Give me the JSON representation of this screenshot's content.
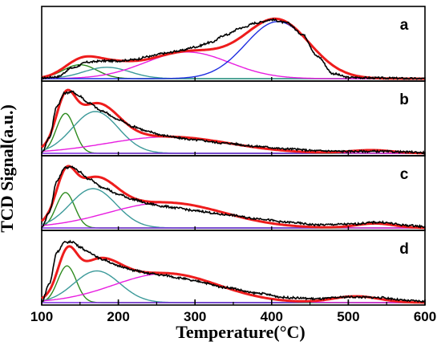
{
  "chart_data": {
    "type": "line",
    "xlabel": "Temperature(°C)",
    "ylabel": "TCD Signal(a.u.)",
    "xlim": [
      100,
      600
    ],
    "x_ticks": [
      "100",
      "200",
      "300",
      "400",
      "500",
      "600"
    ],
    "panels": [
      {
        "label": "a",
        "experimental": {
          "x": [
            100,
            120,
            140,
            160,
            180,
            200,
            220,
            240,
            260,
            280,
            300,
            320,
            340,
            360,
            380,
            400,
            420,
            440,
            460,
            480,
            500,
            540,
            600
          ],
          "y": [
            0.01,
            0.03,
            0.17,
            0.26,
            0.28,
            0.28,
            0.3,
            0.35,
            0.4,
            0.44,
            0.5,
            0.57,
            0.69,
            0.8,
            0.88,
            0.93,
            0.88,
            0.7,
            0.35,
            0.08,
            0.02,
            0.01,
            0.0
          ]
        },
        "peaks": [
          {
            "color": "#2e8b1f",
            "center": 150,
            "height": 0.22,
            "width": 22
          },
          {
            "color": "#3c9a9a",
            "center": 185,
            "height": 0.18,
            "width": 30
          },
          {
            "color": "#e81ee0",
            "center": 290,
            "height": 0.42,
            "width": 55
          },
          {
            "color": "#1f2ee0",
            "center": 408,
            "height": 0.9,
            "width": 42
          }
        ]
      },
      {
        "label": "b",
        "experimental": {
          "x": [
            100,
            110,
            120,
            130,
            140,
            150,
            160,
            180,
            200,
            220,
            240,
            260,
            280,
            300,
            340,
            380,
            420,
            460,
            500,
            540,
            580,
            600
          ],
          "y": [
            0.01,
            0.25,
            0.75,
            0.95,
            0.97,
            0.9,
            0.8,
            0.66,
            0.53,
            0.42,
            0.34,
            0.28,
            0.24,
            0.21,
            0.16,
            0.11,
            0.07,
            0.04,
            0.03,
            0.03,
            0.02,
            0.01
          ]
        },
        "peaks": [
          {
            "color": "#2e8b1f",
            "center": 131,
            "height": 0.63,
            "width": 12
          },
          {
            "color": "#3c9a9a",
            "center": 170,
            "height": 0.66,
            "width": 30
          },
          {
            "color": "#e81ee0",
            "center": 265,
            "height": 0.26,
            "width": 80
          },
          {
            "color": "#7a2ae0",
            "center": 530,
            "height": 0.05,
            "width": 28
          }
        ]
      },
      {
        "label": "c",
        "experimental": {
          "x": [
            100,
            110,
            120,
            130,
            140,
            150,
            160,
            180,
            200,
            220,
            240,
            260,
            280,
            300,
            340,
            380,
            420,
            460,
            500,
            540,
            580,
            600
          ],
          "y": [
            0.01,
            0.25,
            0.75,
            0.95,
            0.96,
            0.88,
            0.78,
            0.64,
            0.53,
            0.45,
            0.38,
            0.34,
            0.31,
            0.27,
            0.21,
            0.15,
            0.09,
            0.05,
            0.06,
            0.09,
            0.04,
            0.02
          ]
        },
        "peaks": [
          {
            "color": "#2e8b1f",
            "center": 131,
            "height": 0.56,
            "width": 12
          },
          {
            "color": "#3c9a9a",
            "center": 167,
            "height": 0.62,
            "width": 30
          },
          {
            "color": "#e81ee0",
            "center": 262,
            "height": 0.4,
            "width": 75
          },
          {
            "color": "#7a2ae0",
            "center": 535,
            "height": 0.07,
            "width": 25
          }
        ]
      },
      {
        "label": "d",
        "experimental": {
          "x": [
            100,
            110,
            120,
            130,
            140,
            150,
            160,
            180,
            200,
            220,
            240,
            260,
            280,
            300,
            340,
            380,
            420,
            460,
            500,
            540,
            580,
            600
          ],
          "y": [
            0.01,
            0.3,
            0.8,
            0.95,
            0.96,
            0.88,
            0.8,
            0.68,
            0.58,
            0.51,
            0.46,
            0.43,
            0.39,
            0.34,
            0.24,
            0.15,
            0.08,
            0.06,
            0.09,
            0.08,
            0.03,
            0.02
          ]
        },
        "peaks": [
          {
            "color": "#2e8b1f",
            "center": 133,
            "height": 0.58,
            "width": 12
          },
          {
            "color": "#3c9a9a",
            "center": 172,
            "height": 0.5,
            "width": 30
          },
          {
            "color": "#e81ee0",
            "center": 262,
            "height": 0.46,
            "width": 68
          },
          {
            "color": "#7a2ae0",
            "center": 510,
            "height": 0.1,
            "width": 30
          }
        ]
      }
    ],
    "colors": {
      "experimental": "#000000",
      "fit": "#ee1c1c",
      "axis": "#000000"
    }
  }
}
